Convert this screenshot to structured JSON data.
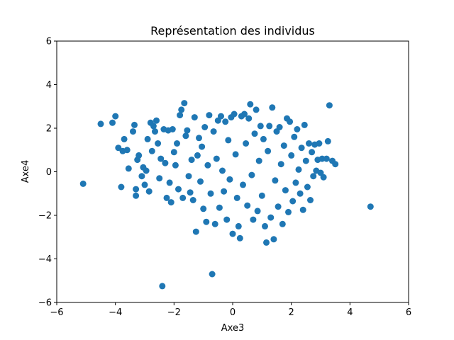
{
  "chart_data": {
    "type": "scatter",
    "title": "Représentation des individus",
    "xlabel": "Axe3",
    "ylabel": "Axe4",
    "xlim": [
      -6,
      6
    ],
    "ylim": [
      -6,
      6
    ],
    "xticks": [
      -6,
      -4,
      -2,
      0,
      2,
      4,
      6
    ],
    "yticks": [
      -6,
      -4,
      -2,
      0,
      2,
      4,
      6
    ],
    "xtick_labels": [
      "−6",
      "−4",
      "−2",
      "0",
      "2",
      "4",
      "6"
    ],
    "ytick_labels": [
      "−6",
      "−4",
      "−2",
      "0",
      "2",
      "4",
      "6"
    ],
    "grid": false,
    "legend": "none",
    "marker_color": "#1f77b4",
    "series": [
      {
        "points": [
          [
            -5.1,
            -0.55
          ],
          [
            -4.5,
            2.2
          ],
          [
            -4.1,
            2.25
          ],
          [
            -4.0,
            2.55
          ],
          [
            -3.9,
            1.1
          ],
          [
            -3.8,
            -0.7
          ],
          [
            -3.75,
            0.95
          ],
          [
            -3.7,
            1.5
          ],
          [
            -3.6,
            1.0
          ],
          [
            -3.55,
            0.15
          ],
          [
            -3.4,
            1.85
          ],
          [
            -3.35,
            2.15
          ],
          [
            -3.3,
            -0.8
          ],
          [
            -3.3,
            -1.1
          ],
          [
            -3.25,
            0.55
          ],
          [
            -3.2,
            0.75
          ],
          [
            -3.1,
            -0.2
          ],
          [
            -3.05,
            0.2
          ],
          [
            -3.0,
            -0.6
          ],
          [
            -2.95,
            0.05
          ],
          [
            -2.9,
            1.5
          ],
          [
            -2.85,
            -0.9
          ],
          [
            -2.8,
            2.25
          ],
          [
            -2.75,
            0.95
          ],
          [
            -2.7,
            2.1
          ],
          [
            -2.65,
            1.85
          ],
          [
            -2.6,
            2.35
          ],
          [
            -2.55,
            1.3
          ],
          [
            -2.5,
            -0.3
          ],
          [
            -2.45,
            0.6
          ],
          [
            -2.4,
            -5.25
          ],
          [
            -2.35,
            1.95
          ],
          [
            -2.3,
            0.4
          ],
          [
            -2.25,
            -1.2
          ],
          [
            -2.2,
            1.9
          ],
          [
            -2.15,
            -0.5
          ],
          [
            -2.1,
            -1.4
          ],
          [
            -2.05,
            1.95
          ],
          [
            -2.0,
            0.9
          ],
          [
            -1.95,
            0.3
          ],
          [
            -1.9,
            1.3
          ],
          [
            -1.85,
            -0.8
          ],
          [
            -1.8,
            2.6
          ],
          [
            -1.75,
            2.85
          ],
          [
            -1.7,
            -1.2
          ],
          [
            -1.65,
            3.15
          ],
          [
            -1.6,
            1.65
          ],
          [
            -1.55,
            1.9
          ],
          [
            -1.5,
            -0.2
          ],
          [
            -1.45,
            -0.95
          ],
          [
            -1.4,
            0.55
          ],
          [
            -1.35,
            -1.3
          ],
          [
            -1.3,
            2.5
          ],
          [
            -1.25,
            -2.75
          ],
          [
            -1.2,
            0.75
          ],
          [
            -1.15,
            1.55
          ],
          [
            -1.1,
            -0.45
          ],
          [
            -1.05,
            1.15
          ],
          [
            -1.0,
            -1.7
          ],
          [
            -0.95,
            2.05
          ],
          [
            -0.9,
            -2.3
          ],
          [
            -0.85,
            0.3
          ],
          [
            -0.8,
            2.6
          ],
          [
            -0.75,
            -1.0
          ],
          [
            -0.7,
            -4.7
          ],
          [
            -0.65,
            1.85
          ],
          [
            -0.6,
            -2.4
          ],
          [
            -0.55,
            0.6
          ],
          [
            -0.5,
            2.35
          ],
          [
            -0.45,
            -1.65
          ],
          [
            -0.4,
            2.55
          ],
          [
            -0.35,
            0.05
          ],
          [
            -0.3,
            -0.9
          ],
          [
            -0.25,
            2.3
          ],
          [
            -0.2,
            -2.2
          ],
          [
            -0.15,
            1.45
          ],
          [
            -0.1,
            -0.35
          ],
          [
            -0.05,
            2.5
          ],
          [
            0.0,
            -2.85
          ],
          [
            0.05,
            2.65
          ],
          [
            0.1,
            0.8
          ],
          [
            0.15,
            -1.2
          ],
          [
            0.2,
            -2.5
          ],
          [
            0.25,
            -3.05
          ],
          [
            0.3,
            2.55
          ],
          [
            0.35,
            -0.6
          ],
          [
            0.4,
            2.65
          ],
          [
            0.45,
            1.3
          ],
          [
            0.5,
            -1.55
          ],
          [
            0.55,
            2.45
          ],
          [
            0.6,
            3.1
          ],
          [
            0.65,
            -0.15
          ],
          [
            0.7,
            -2.2
          ],
          [
            0.75,
            1.75
          ],
          [
            0.8,
            2.85
          ],
          [
            0.85,
            -1.8
          ],
          [
            0.9,
            0.5
          ],
          [
            0.95,
            2.1
          ],
          [
            1.0,
            -1.1
          ],
          [
            1.05,
            1.5
          ],
          [
            1.1,
            -2.5
          ],
          [
            1.15,
            -3.25
          ],
          [
            1.2,
            0.95
          ],
          [
            1.25,
            2.1
          ],
          [
            1.3,
            -2.1
          ],
          [
            1.35,
            2.95
          ],
          [
            1.4,
            -3.1
          ],
          [
            1.45,
            -0.4
          ],
          [
            1.5,
            1.85
          ],
          [
            1.55,
            -1.6
          ],
          [
            1.6,
            2.05
          ],
          [
            1.65,
            0.35
          ],
          [
            1.7,
            -2.4
          ],
          [
            1.75,
            1.2
          ],
          [
            1.8,
            -0.85
          ],
          [
            1.85,
            2.45
          ],
          [
            1.9,
            -1.85
          ],
          [
            1.95,
            2.3
          ],
          [
            2.0,
            0.75
          ],
          [
            2.05,
            -1.35
          ],
          [
            2.1,
            1.6
          ],
          [
            2.15,
            -0.5
          ],
          [
            2.2,
            1.95
          ],
          [
            2.25,
            0.1
          ],
          [
            2.3,
            -1.0
          ],
          [
            2.35,
            1.1
          ],
          [
            2.4,
            -1.75
          ],
          [
            2.45,
            2.15
          ],
          [
            2.5,
            0.5
          ],
          [
            2.55,
            -0.7
          ],
          [
            2.6,
            1.3
          ],
          [
            2.65,
            -1.3
          ],
          [
            2.7,
            0.9
          ],
          [
            2.75,
            -0.2
          ],
          [
            2.8,
            1.25
          ],
          [
            2.85,
            0.05
          ],
          [
            2.9,
            0.55
          ],
          [
            2.95,
            1.3
          ],
          [
            3.0,
            -0.05
          ],
          [
            3.05,
            0.6
          ],
          [
            3.1,
            -0.25
          ],
          [
            3.2,
            0.6
          ],
          [
            3.25,
            1.4
          ],
          [
            3.3,
            3.05
          ],
          [
            3.4,
            0.5
          ],
          [
            3.5,
            0.35
          ],
          [
            4.7,
            -1.6
          ]
        ]
      }
    ]
  }
}
